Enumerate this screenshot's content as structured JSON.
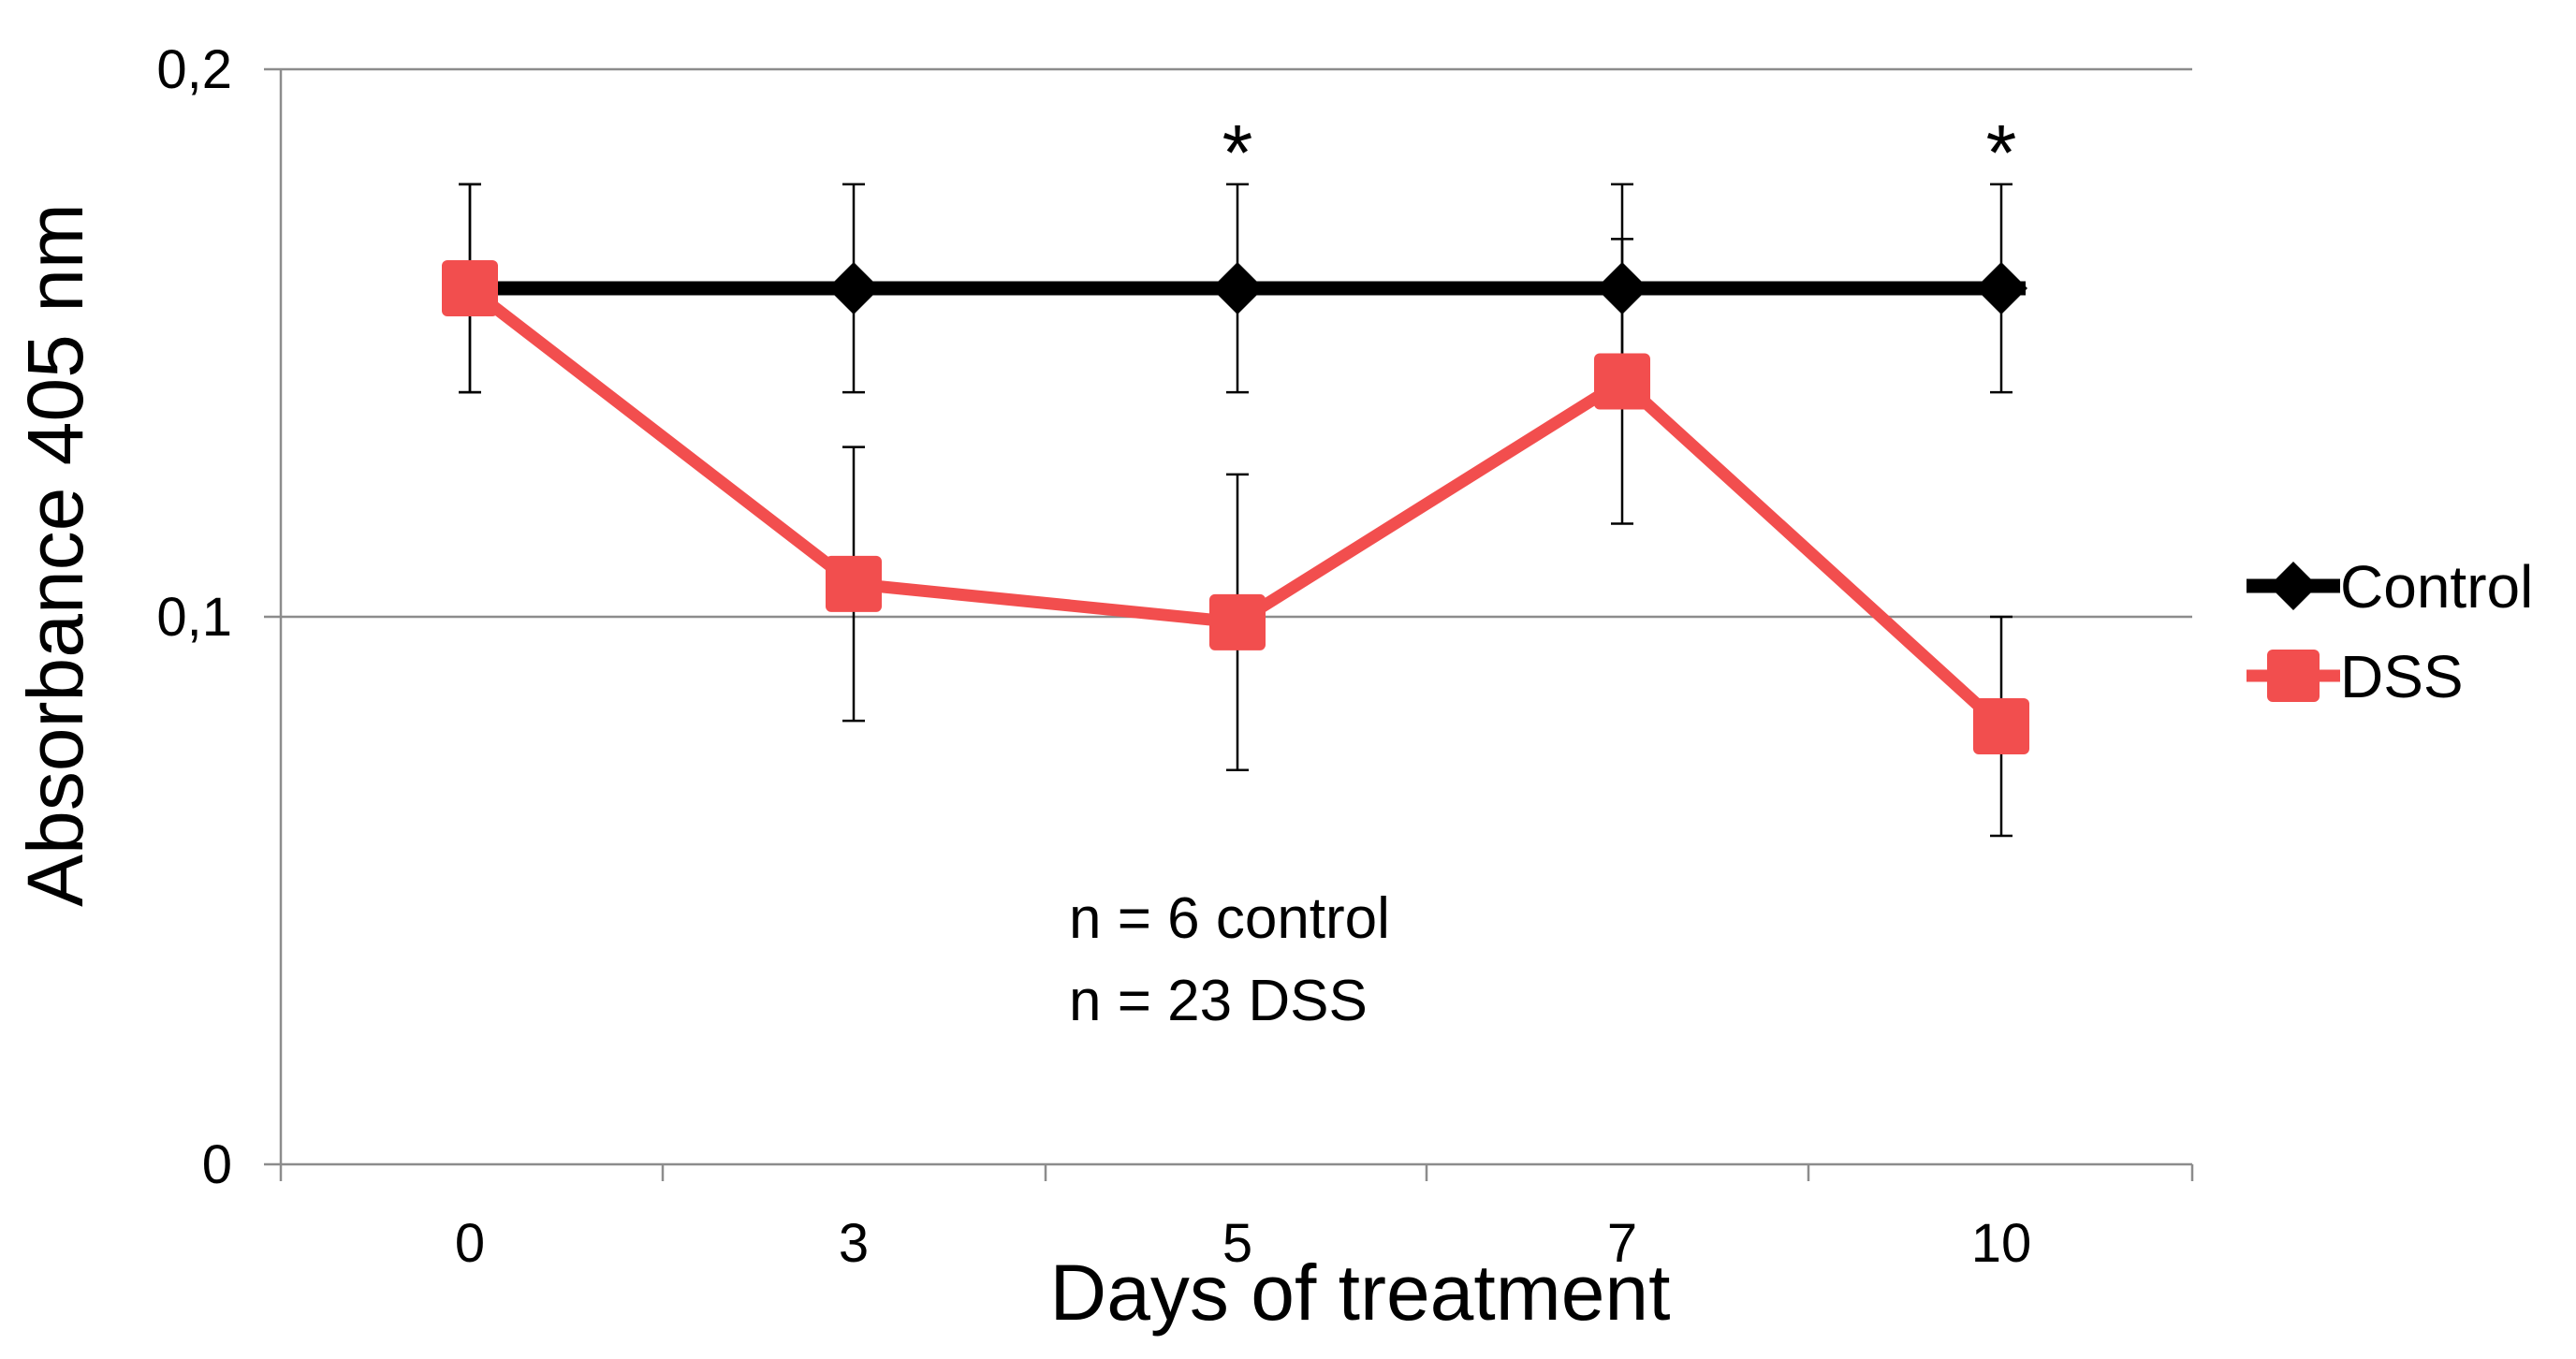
{
  "chart_data": {
    "type": "line",
    "categories": [
      "0",
      "3",
      "5",
      "7",
      "10"
    ],
    "series": [
      {
        "name": "Control",
        "values": [
          0.16,
          0.16,
          0.16,
          0.16,
          0.16
        ],
        "errors": [
          0.019,
          0.019,
          0.019,
          0.019,
          0.019
        ],
        "color": "#000000",
        "marker": "diamond"
      },
      {
        "name": "DSS",
        "values": [
          0.16,
          0.106,
          0.099,
          0.143,
          0.08
        ],
        "errors": [
          0.019,
          0.025,
          0.027,
          0.026,
          0.02
        ],
        "color": "#f24e4e",
        "marker": "square"
      }
    ],
    "title": "",
    "xlabel": "Days of treatment",
    "ylabel": "Absorbance 405 nm",
    "ylim": [
      0,
      0.2
    ],
    "yticks": [
      0,
      0.1,
      0.2
    ],
    "ytick_labels": [
      "0",
      "0,1",
      "0,2"
    ],
    "grid": true,
    "legend_position": "right",
    "significance_marks": [
      {
        "category": "5",
        "label": "*"
      },
      {
        "category": "10",
        "label": "*"
      }
    ],
    "annotations": [
      "n = 6 control",
      "n = 23 DSS"
    ]
  }
}
